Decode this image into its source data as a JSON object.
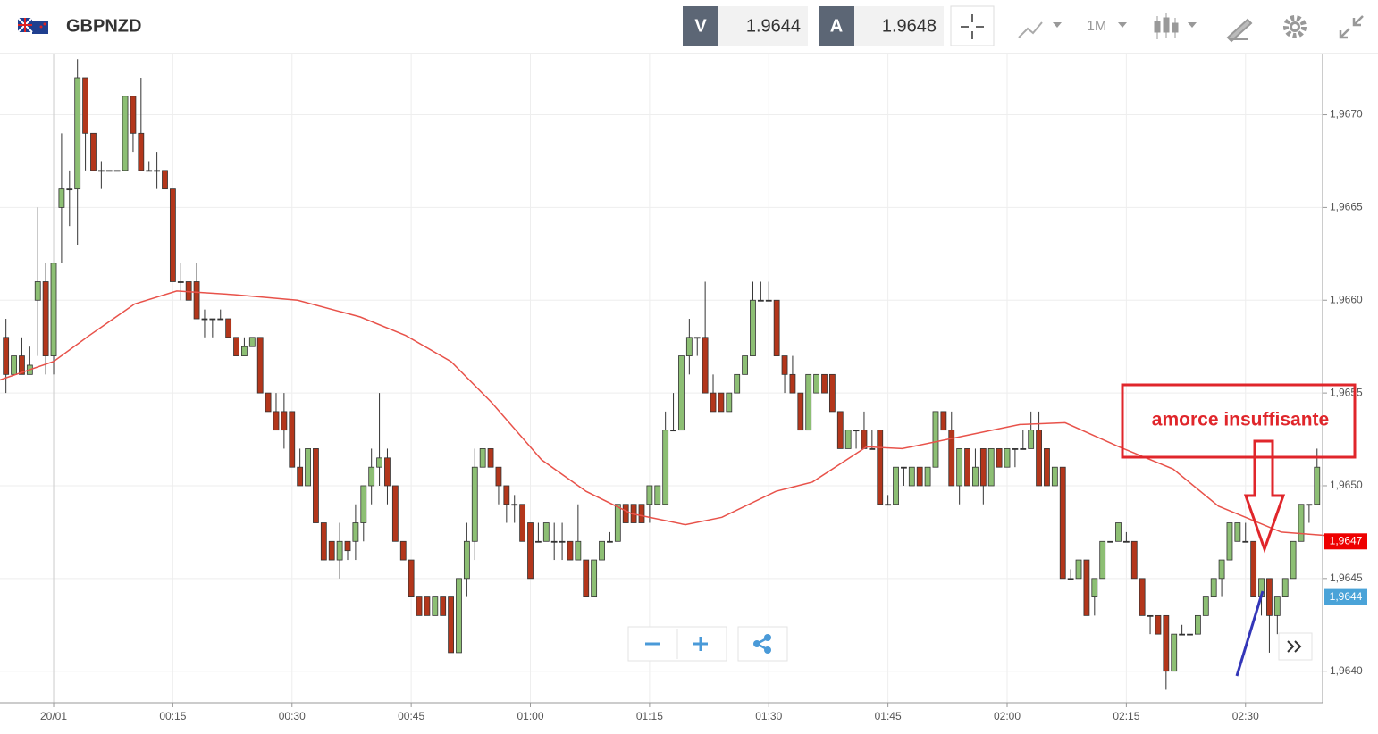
{
  "toolbar": {
    "symbol": "GBPNZD",
    "bid_label": "V",
    "bid": 1.9644,
    "ask_label": "A",
    "ask": 1.9648,
    "timeframe": "1M"
  },
  "chart_data": {
    "type": "candlestick",
    "up_color": "#8dbf74",
    "down_color": "#b3361b",
    "ma_color": "#e8524a",
    "grid": true,
    "xlim": [
      -6.75,
      159.7
    ],
    "ylim": [
      1.96383,
      1.96733
    ],
    "xticks": [
      {
        "value": 0,
        "label": "20/01"
      },
      {
        "value": 15,
        "label": "00:15"
      },
      {
        "value": 30,
        "label": "00:30"
      },
      {
        "value": 45,
        "label": "00:45"
      },
      {
        "value": 60,
        "label": "01:00"
      },
      {
        "value": 75,
        "label": "01:15"
      },
      {
        "value": 90,
        "label": "01:30"
      },
      {
        "value": 105,
        "label": "01:45"
      },
      {
        "value": 120,
        "label": "02:00"
      },
      {
        "value": 135,
        "label": "02:15"
      },
      {
        "value": 150,
        "label": "02:30"
      }
    ],
    "yticks": [
      {
        "value": 1.964,
        "label": "1,9640"
      },
      {
        "value": 1.9645,
        "label": "1,9645"
      },
      {
        "value": 1.965,
        "label": "1,9650"
      },
      {
        "value": 1.9655,
        "label": "1,9655"
      },
      {
        "value": 1.966,
        "label": "1,9660"
      },
      {
        "value": 1.9665,
        "label": "1,9665"
      },
      {
        "value": 1.967,
        "label": "1,9670"
      }
    ],
    "price_tags": [
      {
        "value": 1.9647,
        "label": "1,9647",
        "color": "#ee0000"
      },
      {
        "value": 1.9644,
        "label": "1,9644",
        "color": "#4aa3d8"
      }
    ],
    "annotation": "amorce insuffisante",
    "x": [
      -6,
      -5,
      -4,
      -3,
      -2,
      -1,
      0,
      1,
      2,
      3,
      4,
      5,
      6,
      7,
      8,
      9,
      10,
      11,
      12,
      13,
      14,
      15,
      16,
      17,
      18,
      19,
      20,
      21,
      22,
      23,
      24,
      25,
      26,
      27,
      28,
      29,
      30,
      31,
      32,
      33,
      34,
      35,
      36,
      37,
      38,
      39,
      40,
      41,
      42,
      43,
      44,
      45,
      46,
      47,
      48,
      49,
      50,
      51,
      52,
      53,
      54,
      55,
      56,
      57,
      58,
      59,
      60,
      61,
      62,
      63,
      64,
      65,
      66,
      67,
      68,
      69,
      70,
      71,
      72,
      73,
      74,
      75,
      76,
      77,
      78,
      79,
      80,
      81,
      82,
      83,
      84,
      85,
      86,
      87,
      88,
      89,
      90,
      91,
      92,
      93,
      94,
      95,
      96,
      97,
      98,
      99,
      100,
      101,
      102,
      103,
      104,
      105,
      106,
      107,
      108,
      109,
      110,
      111,
      112,
      113,
      114,
      115,
      116,
      117,
      118,
      119,
      120,
      121,
      122,
      123,
      124,
      125,
      126,
      127,
      128,
      129,
      130,
      131,
      132,
      133,
      134,
      135,
      136,
      137,
      138,
      139,
      140,
      141,
      142,
      143,
      144,
      145,
      146,
      147,
      148,
      149,
      150,
      151,
      152,
      153,
      154,
      155,
      156,
      157,
      158,
      159
    ],
    "candles": [
      [
        1.9658,
        1.9659,
        1.9655,
        1.9656
      ],
      [
        1.9656,
        1.9657,
        1.9656,
        1.9657
      ],
      [
        1.9657,
        1.9658,
        1.9656,
        1.9656
      ],
      [
        1.9656,
        1.96575,
        1.9656,
        1.96565
      ],
      [
        1.966,
        1.9665,
        1.9657,
        1.9661
      ],
      [
        1.9661,
        1.9662,
        1.9656,
        1.9657
      ],
      [
        1.9657,
        1.9662,
        1.9656,
        1.9662
      ],
      [
        1.9665,
        1.9669,
        1.9662,
        1.9666
      ],
      [
        1.9666,
        1.9667,
        1.9664,
        1.9666
      ],
      [
        1.9666,
        1.9673,
        1.9663,
        1.9672
      ],
      [
        1.9672,
        1.9672,
        1.9667,
        1.9669
      ],
      [
        1.9669,
        1.9669,
        1.9667,
        1.9667
      ],
      [
        1.9667,
        1.96675,
        1.9666,
        1.9667
      ],
      [
        1.9667,
        1.9667,
        1.9667,
        1.9667
      ],
      [
        1.9667,
        1.9667,
        1.9667,
        1.9667
      ],
      [
        1.9667,
        1.9671,
        1.9667,
        1.9671
      ],
      [
        1.9671,
        1.9671,
        1.9668,
        1.9669
      ],
      [
        1.9669,
        1.9672,
        1.9667,
        1.9667
      ],
      [
        1.9667,
        1.96675,
        1.9667,
        1.9667
      ],
      [
        1.9667,
        1.9668,
        1.9666,
        1.9667
      ],
      [
        1.9667,
        1.9667,
        1.9666,
        1.9666
      ],
      [
        1.9666,
        1.9666,
        1.9661,
        1.9661
      ],
      [
        1.9661,
        1.9662,
        1.966,
        1.9661
      ],
      [
        1.9661,
        1.9661,
        1.966,
        1.966
      ],
      [
        1.9661,
        1.9662,
        1.9659,
        1.9659
      ],
      [
        1.9659,
        1.96595,
        1.9658,
        1.9659
      ],
      [
        1.9659,
        1.9659,
        1.9658,
        1.9659
      ],
      [
        1.9659,
        1.96595,
        1.9659,
        1.9659
      ],
      [
        1.9659,
        1.9659,
        1.9658,
        1.9658
      ],
      [
        1.9658,
        1.9658,
        1.9657,
        1.9657
      ],
      [
        1.9657,
        1.9658,
        1.9657,
        1.96575
      ],
      [
        1.96575,
        1.9658,
        1.96575,
        1.9658
      ],
      [
        1.9658,
        1.9658,
        1.9655,
        1.9655
      ],
      [
        1.9655,
        1.9655,
        1.9654,
        1.9654
      ],
      [
        1.9654,
        1.9655,
        1.9653,
        1.9653
      ],
      [
        1.9654,
        1.9655,
        1.9652,
        1.9653
      ],
      [
        1.9654,
        1.9654,
        1.9651,
        1.9651
      ],
      [
        1.9651,
        1.9652,
        1.965,
        1.965
      ],
      [
        1.965,
        1.9652,
        1.965,
        1.9652
      ],
      [
        1.9652,
        1.9652,
        1.9648,
        1.9648
      ],
      [
        1.9648,
        1.9648,
        1.9646,
        1.9646
      ],
      [
        1.9647,
        1.9647,
        1.9646,
        1.9646
      ],
      [
        1.9646,
        1.9648,
        1.9645,
        1.9647
      ],
      [
        1.9647,
        1.9647,
        1.9646,
        1.96465
      ],
      [
        1.9647,
        1.9649,
        1.9646,
        1.9648
      ],
      [
        1.9648,
        1.965,
        1.9647,
        1.965
      ],
      [
        1.965,
        1.9652,
        1.9649,
        1.9651
      ],
      [
        1.9651,
        1.9655,
        1.965,
        1.96515
      ],
      [
        1.96515,
        1.9652,
        1.9649,
        1.965
      ],
      [
        1.965,
        1.965,
        1.9647,
        1.9647
      ],
      [
        1.9647,
        1.9647,
        1.9646,
        1.9646
      ],
      [
        1.9646,
        1.9646,
        1.9644,
        1.9644
      ],
      [
        1.9644,
        1.9644,
        1.9643,
        1.9643
      ],
      [
        1.9644,
        1.9644,
        1.9643,
        1.9643
      ],
      [
        1.9643,
        1.9644,
        1.9643,
        1.9644
      ],
      [
        1.9644,
        1.9644,
        1.9643,
        1.9643
      ],
      [
        1.9644,
        1.9644,
        1.9641,
        1.9641
      ],
      [
        1.9641,
        1.9645,
        1.9641,
        1.9645
      ],
      [
        1.9645,
        1.9648,
        1.9644,
        1.9647
      ],
      [
        1.9647,
        1.9652,
        1.9646,
        1.9651
      ],
      [
        1.9651,
        1.9652,
        1.9651,
        1.9652
      ],
      [
        1.9652,
        1.9652,
        1.9651,
        1.9651
      ],
      [
        1.9651,
        1.9651,
        1.9649,
        1.965
      ],
      [
        1.965,
        1.965,
        1.9648,
        1.9649
      ],
      [
        1.9649,
        1.96495,
        1.9648,
        1.9649
      ],
      [
        1.9649,
        1.9649,
        1.9647,
        1.9647
      ],
      [
        1.9648,
        1.9648,
        1.9645,
        1.9645
      ],
      [
        1.9647,
        1.9648,
        1.9647,
        1.9647
      ],
      [
        1.9647,
        1.9648,
        1.9647,
        1.9648
      ],
      [
        1.9647,
        1.9648,
        1.9646,
        1.9647
      ],
      [
        1.9647,
        1.9648,
        1.9646,
        1.9647
      ],
      [
        1.9647,
        1.9647,
        1.9646,
        1.9646
      ],
      [
        1.9646,
        1.9649,
        1.9646,
        1.9647
      ],
      [
        1.9646,
        1.9646,
        1.9644,
        1.9644
      ],
      [
        1.9644,
        1.9646,
        1.9644,
        1.9646
      ],
      [
        1.9646,
        1.9647,
        1.9646,
        1.9647
      ],
      [
        1.9647,
        1.96475,
        1.9647,
        1.9647
      ],
      [
        1.9647,
        1.9649,
        1.9647,
        1.9649
      ],
      [
        1.9649,
        1.9649,
        1.9648,
        1.9648
      ],
      [
        1.9649,
        1.9649,
        1.9648,
        1.9648
      ],
      [
        1.9649,
        1.9649,
        1.9648,
        1.9648
      ],
      [
        1.9649,
        1.965,
        1.9648,
        1.965
      ],
      [
        1.9649,
        1.965,
        1.9649,
        1.965
      ],
      [
        1.9649,
        1.9654,
        1.9649,
        1.9653
      ],
      [
        1.9653,
        1.9655,
        1.9653,
        1.9653
      ],
      [
        1.9653,
        1.9657,
        1.9653,
        1.9657
      ],
      [
        1.9657,
        1.9659,
        1.9656,
        1.9658
      ],
      [
        1.9658,
        1.9658,
        1.9657,
        1.9658
      ],
      [
        1.9658,
        1.9661,
        1.9655,
        1.9655
      ],
      [
        1.9655,
        1.9656,
        1.9654,
        1.9654
      ],
      [
        1.9655,
        1.9655,
        1.9654,
        1.9654
      ],
      [
        1.9654,
        1.9655,
        1.9654,
        1.9655
      ],
      [
        1.9655,
        1.9656,
        1.9655,
        1.9656
      ],
      [
        1.9656,
        1.9657,
        1.9656,
        1.9657
      ],
      [
        1.9657,
        1.9661,
        1.9657,
        1.966
      ],
      [
        1.966,
        1.9661,
        1.966,
        1.966
      ],
      [
        1.966,
        1.9661,
        1.966,
        1.966
      ],
      [
        1.966,
        1.966,
        1.9657,
        1.9657
      ],
      [
        1.9657,
        1.9657,
        1.9655,
        1.9656
      ],
      [
        1.9656,
        1.9657,
        1.9655,
        1.9655
      ],
      [
        1.9655,
        1.9655,
        1.9653,
        1.9653
      ],
      [
        1.9653,
        1.9656,
        1.9653,
        1.9656
      ],
      [
        1.9655,
        1.9656,
        1.9655,
        1.9656
      ],
      [
        1.9656,
        1.9656,
        1.9655,
        1.9655
      ],
      [
        1.9656,
        1.9656,
        1.9654,
        1.9654
      ],
      [
        1.9654,
        1.9654,
        1.9652,
        1.9652
      ],
      [
        1.9652,
        1.9653,
        1.9652,
        1.9653
      ],
      [
        1.9653,
        1.9653,
        1.9652,
        1.9653
      ],
      [
        1.9653,
        1.9654,
        1.9652,
        1.9652
      ],
      [
        1.9652,
        1.9653,
        1.9652,
        1.9652
      ],
      [
        1.9653,
        1.9653,
        1.9649,
        1.9649
      ],
      [
        1.9649,
        1.96495,
        1.9649,
        1.9649
      ],
      [
        1.9649,
        1.9651,
        1.9649,
        1.9651
      ],
      [
        1.9651,
        1.9651,
        1.965,
        1.9651
      ],
      [
        1.965,
        1.9651,
        1.965,
        1.9651
      ],
      [
        1.9651,
        1.9651,
        1.965,
        1.965
      ],
      [
        1.965,
        1.9651,
        1.965,
        1.9651
      ],
      [
        1.9651,
        1.9654,
        1.9651,
        1.9654
      ],
      [
        1.9654,
        1.9654,
        1.9653,
        1.9653
      ],
      [
        1.9653,
        1.9654,
        1.965,
        1.965
      ],
      [
        1.965,
        1.9652,
        1.9649,
        1.9652
      ],
      [
        1.9652,
        1.9652,
        1.965,
        1.965
      ],
      [
        1.965,
        1.9652,
        1.965,
        1.9651
      ],
      [
        1.9652,
        1.9652,
        1.9649,
        1.965
      ],
      [
        1.965,
        1.9652,
        1.965,
        1.9652
      ],
      [
        1.9652,
        1.9652,
        1.9651,
        1.9651
      ],
      [
        1.9651,
        1.9652,
        1.9651,
        1.9652
      ],
      [
        1.9652,
        1.9652,
        1.9651,
        1.9652
      ],
      [
        1.9652,
        1.9653,
        1.9652,
        1.9652
      ],
      [
        1.9652,
        1.9654,
        1.9652,
        1.9653
      ],
      [
        1.9653,
        1.9654,
        1.965,
        1.965
      ],
      [
        1.9652,
        1.9652,
        1.965,
        1.965
      ],
      [
        1.965,
        1.9651,
        1.965,
        1.9651
      ],
      [
        1.9651,
        1.9651,
        1.9645,
        1.9645
      ],
      [
        1.9645,
        1.96455,
        1.9645,
        1.9645
      ],
      [
        1.9645,
        1.9646,
        1.9645,
        1.9646
      ],
      [
        1.9646,
        1.9646,
        1.9643,
        1.9643
      ],
      [
        1.9644,
        1.9645,
        1.9643,
        1.9645
      ],
      [
        1.9645,
        1.9647,
        1.9645,
        1.9647
      ],
      [
        1.9647,
        1.9647,
        1.9647,
        1.9647
      ],
      [
        1.9647,
        1.9648,
        1.9647,
        1.9648
      ],
      [
        1.9647,
        1.96475,
        1.9647,
        1.9647
      ],
      [
        1.9647,
        1.9647,
        1.9645,
        1.9645
      ],
      [
        1.9645,
        1.9645,
        1.9643,
        1.9643
      ],
      [
        1.9643,
        1.9643,
        1.9642,
        1.9643
      ],
      [
        1.9643,
        1.9643,
        1.9642,
        1.9642
      ],
      [
        1.9643,
        1.9643,
        1.9639,
        1.964
      ],
      [
        1.964,
        1.9642,
        1.964,
        1.9642
      ],
      [
        1.9642,
        1.96425,
        1.9642,
        1.9642
      ],
      [
        1.9642,
        1.9642,
        1.9642,
        1.9642
      ],
      [
        1.9642,
        1.9643,
        1.9642,
        1.9643
      ],
      [
        1.9643,
        1.9644,
        1.9643,
        1.9644
      ],
      [
        1.9644,
        1.9645,
        1.9644,
        1.9645
      ],
      [
        1.9645,
        1.9646,
        1.9644,
        1.9646
      ],
      [
        1.9646,
        1.9648,
        1.9646,
        1.9648
      ],
      [
        1.9647,
        1.9648,
        1.9647,
        1.9648
      ],
      [
        1.9647,
        1.9648,
        1.9647,
        1.9647
      ],
      [
        1.9647,
        1.9647,
        1.9644,
        1.9644
      ],
      [
        1.9644,
        1.9645,
        1.9643,
        1.9645
      ],
      [
        1.9645,
        1.9645,
        1.9641,
        1.9643
      ],
      [
        1.9643,
        1.9644,
        1.9642,
        1.9644
      ],
      [
        1.9644,
        1.9645,
        1.9644,
        1.9645
      ],
      [
        1.9645,
        1.9647,
        1.9645,
        1.9647
      ],
      [
        1.9647,
        1.9649,
        1.9647,
        1.9649
      ],
      [
        1.9649,
        1.9649,
        1.9648,
        1.9649
      ],
      [
        1.9649,
        1.9652,
        1.9649,
        1.9651
      ]
    ],
    "ma": {
      "x": [
        -6.8,
        0,
        4.5,
        10.2,
        15.5,
        22.7,
        30.7,
        38.6,
        44.3,
        50,
        55.1,
        61.4,
        67,
        72.7,
        79.5,
        84.1,
        90.9,
        95.5,
        102.3,
        106.8,
        113.6,
        121.6,
        127.3,
        134.1,
        140.9,
        146.6,
        154.5,
        160.8
      ],
      "values": [
        1.96557,
        1.96567,
        1.96581,
        1.96598,
        1.96605,
        1.96603,
        1.966,
        1.96591,
        1.96581,
        1.96567,
        1.96545,
        1.96514,
        1.96497,
        1.96485,
        1.96479,
        1.96483,
        1.96497,
        1.96502,
        1.96521,
        1.9652,
        1.96526,
        1.96533,
        1.96534,
        1.96521,
        1.96509,
        1.96489,
        1.96475,
        1.96473
      ]
    }
  }
}
